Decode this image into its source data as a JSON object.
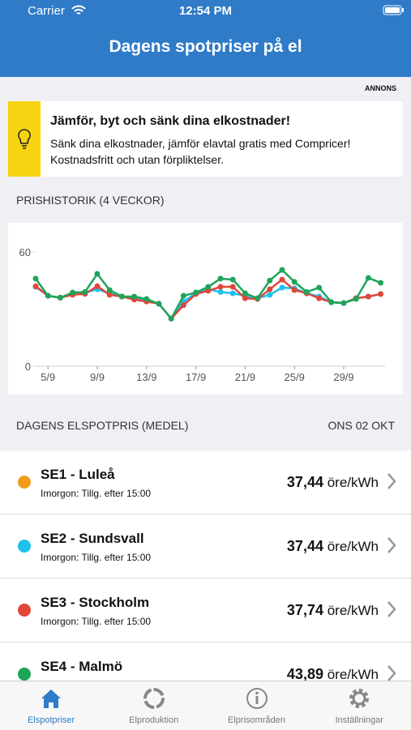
{
  "status_bar": {
    "carrier": "Carrier",
    "time": "12:54 PM"
  },
  "header": {
    "title": "Dagens spotpriser på el"
  },
  "ad": {
    "label": "ANNONS",
    "title": "Jämför, byt och sänk dina elkostnader!",
    "lines": [
      "Sänk dina elkostnader, jämför elavtal gratis med Compricer!",
      "Kostnadsfritt och utan förpliktelser."
    ]
  },
  "chart_section": {
    "heading": "PRISHISTORIK (4 VECKOR)"
  },
  "chart_data": {
    "type": "line",
    "categories": [
      null,
      "5/9",
      null,
      null,
      null,
      "9/9",
      null,
      null,
      null,
      "13/9",
      null,
      null,
      null,
      "17/9",
      null,
      null,
      null,
      "21/9",
      null,
      null,
      null,
      "25/9",
      null,
      null,
      null,
      "29/9",
      null,
      null,
      null
    ],
    "series": [
      {
        "name": "SE2",
        "color": "#1ec0ee",
        "values": [
          41.7,
          37,
          36,
          38,
          38.6,
          40.4,
          38.3,
          36.6,
          35.5,
          34.5,
          32.8,
          25,
          34,
          38.3,
          40.4,
          39,
          38.3,
          37,
          35.7,
          37.5,
          41.3,
          40.9,
          38.3,
          36.6,
          33.6,
          33.2,
          35.7,
          36.6,
          37.9
        ]
      },
      {
        "name": "SE3",
        "color": "#e0463a",
        "values": [
          42,
          37,
          36,
          37.5,
          38,
          42,
          37.5,
          36.6,
          35,
          34,
          32.8,
          25,
          32,
          37.9,
          39.6,
          41.7,
          41.7,
          35.7,
          35.3,
          40.4,
          45.5,
          40,
          38.3,
          35.7,
          33.6,
          33.2,
          35.7,
          36.6,
          37.9
        ]
      },
      {
        "name": "SE4",
        "color": "#1ea55a",
        "values": [
          46,
          37,
          36,
          38.7,
          39,
          48.5,
          40,
          36.6,
          36.6,
          35.3,
          32.8,
          25,
          37,
          38.7,
          41.7,
          46,
          45.5,
          38.3,
          35.7,
          45,
          50.6,
          44.3,
          39,
          41.3,
          33.6,
          33.2,
          35.3,
          46.4,
          43.8
        ]
      }
    ],
    "ylim": [
      0,
      60
    ],
    "yticks": [
      0,
      60
    ]
  },
  "price_section": {
    "heading": "DAGENS ELSPOTPRIS (MEDEL)",
    "date": "ONS 02 OKT"
  },
  "regions": [
    {
      "name": "SE1 - Luleå",
      "subtitle": "Imorgon: Tillg. efter 15:00",
      "price": "37,44",
      "unit": "öre/kWh",
      "color": "#f39c1a"
    },
    {
      "name": "SE2 - Sundsvall",
      "subtitle": "Imorgon: Tillg. efter 15:00",
      "price": "37,44",
      "unit": "öre/kWh",
      "color": "#1ec0ee"
    },
    {
      "name": "SE3 - Stockholm",
      "subtitle": "Imorgon: Tillg. efter 15:00",
      "price": "37,74",
      "unit": "öre/kWh",
      "color": "#e0463a"
    },
    {
      "name": "SE4 - Malmö",
      "price": "43,89",
      "unit": "öre/kWh",
      "color": "#1ea55a"
    }
  ],
  "tabs": [
    "Elspotpriser",
    "Elproduktion",
    "Elprisområden",
    "Inställningar"
  ]
}
